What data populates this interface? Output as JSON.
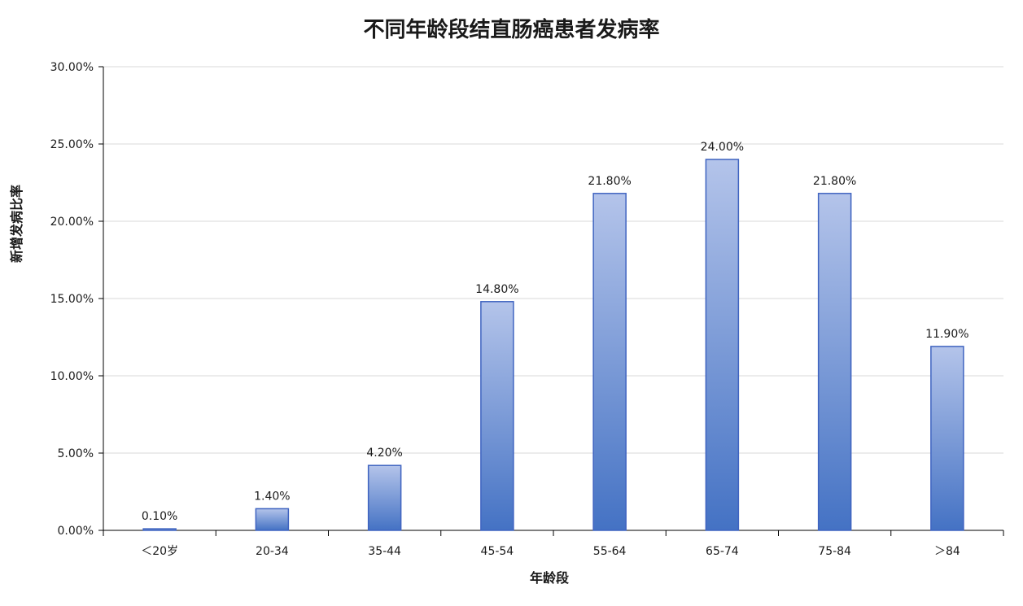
{
  "chart_data": {
    "type": "bar",
    "title": "不同年龄段结直肠癌患者发病率",
    "xlabel": "年龄段",
    "ylabel": "新增发病比率",
    "categories": [
      "＜20岁",
      "20-34",
      "35-44",
      "45-54",
      "55-64",
      "65-74",
      "75-84",
      "＞84"
    ],
    "values": [
      0.1,
      1.4,
      4.2,
      14.8,
      21.8,
      24.0,
      21.8,
      11.9
    ],
    "data_labels": [
      "0.10%",
      "1.40%",
      "4.20%",
      "14.80%",
      "21.80%",
      "24.00%",
      "21.80%",
      "11.90%"
    ],
    "yticks": [
      0,
      5,
      10,
      15,
      20,
      25,
      30
    ],
    "ytick_labels": [
      "0.00%",
      "5.00%",
      "10.00%",
      "15.00%",
      "20.00%",
      "25.00%",
      "30.00%"
    ],
    "ylim": [
      0,
      30
    ],
    "grid": true,
    "legend": "none",
    "colors": {
      "bar_top": "#b4c4ea",
      "bar_bottom": "#4472c4",
      "bar_border": "#3f63c0",
      "grid": "#d9d9d9",
      "axis": "#000000"
    }
  }
}
